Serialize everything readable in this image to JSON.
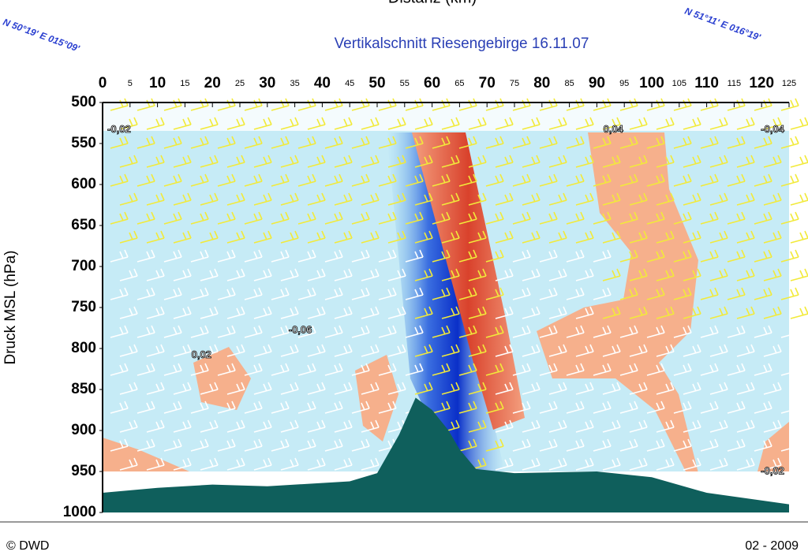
{
  "chart_data": {
    "type": "cross-section",
    "title": "Vertikalschnitt Riesengebirge 16.11.07",
    "xlabel": "Distanz (km)",
    "ylabel": "Druck MSL (hPa)",
    "corner_left": "N 50°19' E 015°09'",
    "corner_right": "N 51°11' E 016°19'",
    "xlim": [
      0,
      125
    ],
    "xticks": [
      0,
      5,
      10,
      15,
      20,
      25,
      30,
      35,
      40,
      45,
      50,
      55,
      60,
      65,
      70,
      75,
      80,
      85,
      90,
      95,
      100,
      105,
      110,
      115,
      120,
      125
    ],
    "ylim": [
      500,
      1000
    ],
    "yticks": [
      500,
      550,
      600,
      650,
      700,
      750,
      800,
      850,
      900,
      950,
      1000
    ],
    "log_y": false,
    "terrain": {
      "color": "#0f5f5c",
      "x": [
        0,
        10,
        20,
        30,
        45,
        50,
        54,
        57,
        60,
        63,
        65,
        68,
        75,
        90,
        100,
        110,
        125
      ],
      "values": [
        976,
        970,
        966,
        968,
        962,
        952,
        905,
        860,
        875,
        900,
        923,
        947,
        952,
        950,
        957,
        976,
        990
      ]
    },
    "annotations": [
      {
        "text": "-0,02",
        "x": 3,
        "y": 533
      },
      {
        "text": "0,04",
        "x": 93,
        "y": 533
      },
      {
        "text": "-0,04",
        "x": 122,
        "y": 533
      },
      {
        "text": "-0,06",
        "x": 36,
        "y": 778
      },
      {
        "text": "0,02",
        "x": 18,
        "y": 808
      },
      {
        "text": "-0,02",
        "x": 122,
        "y": 950
      }
    ]
  },
  "footer": {
    "left": "© DWD",
    "right": "02 - 2009"
  }
}
